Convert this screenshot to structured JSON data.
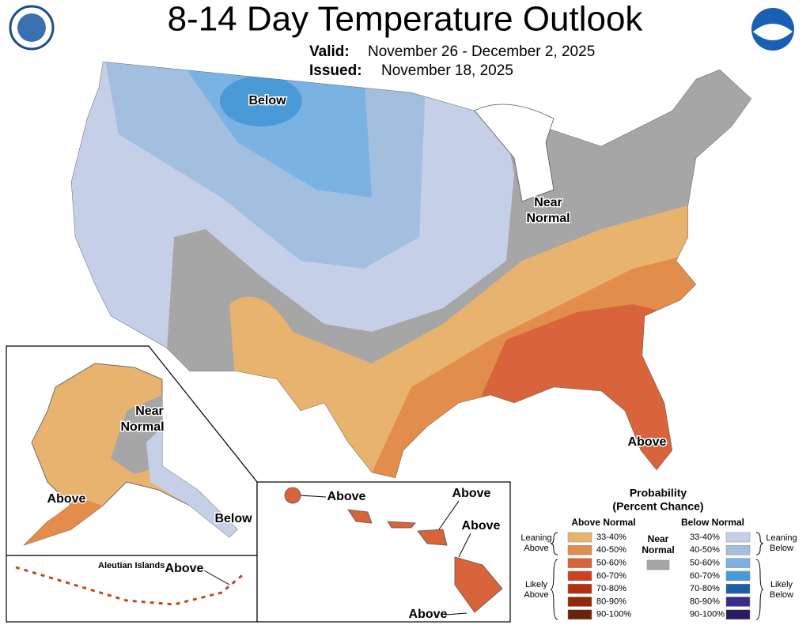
{
  "header": {
    "title": "8-14 Day Temperature Outlook",
    "valid_label": "Valid:",
    "valid_dates": "November 26 - December 2, 2025",
    "issued_label": "Issued:",
    "issued_date": "November 18, 2025"
  },
  "map": {
    "conus": {
      "below": "Below",
      "near_normal": [
        "Near",
        "Normal"
      ],
      "above": "Above"
    },
    "alaska": {
      "near_normal": [
        "Near",
        "Normal"
      ],
      "above": "Above",
      "below": "Below"
    },
    "aleutians": {
      "title": "Aleutian Islands",
      "above": "Above"
    },
    "hawaii": {
      "labels": [
        "Above",
        "Above",
        "Above",
        "Above"
      ]
    }
  },
  "legend": {
    "title": [
      "Probability",
      "(Percent Chance)"
    ],
    "above": {
      "heading": "Above Normal",
      "leaning": [
        "Leaning",
        "Above"
      ],
      "likely": [
        "Likely",
        "Above"
      ],
      "items": [
        {
          "label": "33-40%",
          "color": "#e8b36f"
        },
        {
          "label": "40-50%",
          "color": "#e28d4b"
        },
        {
          "label": "50-60%",
          "color": "#d9633a"
        },
        {
          "label": "60-70%",
          "color": "#c9441c"
        },
        {
          "label": "70-80%",
          "color": "#b5300f"
        },
        {
          "label": "80-90%",
          "color": "#8d2a0b"
        },
        {
          "label": "90-100%",
          "color": "#6b2208"
        }
      ]
    },
    "near": {
      "label": [
        "Near",
        "Normal"
      ],
      "color": "#a6a6a6"
    },
    "below": {
      "heading": "Below Normal",
      "leaning": [
        "Leaning",
        "Below"
      ],
      "likely": [
        "Likely",
        "Below"
      ],
      "items": [
        {
          "label": "33-40%",
          "color": "#c5d0e8"
        },
        {
          "label": "40-50%",
          "color": "#a2bfe0"
        },
        {
          "label": "50-60%",
          "color": "#7ab3e3"
        },
        {
          "label": "60-70%",
          "color": "#4b9ad8"
        },
        {
          "label": "70-80%",
          "color": "#1c5fa8"
        },
        {
          "label": "80-90%",
          "color": "#3b2a8a"
        },
        {
          "label": "90-100%",
          "color": "#2a1b5e"
        }
      ]
    }
  }
}
